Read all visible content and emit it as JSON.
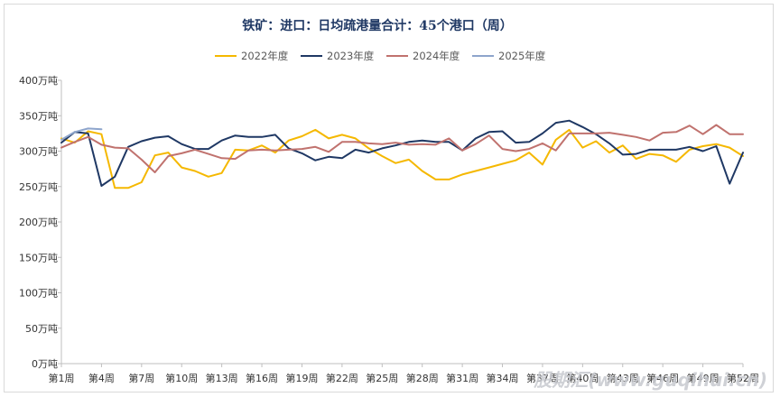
{
  "chart_data": {
    "type": "line",
    "title": "铁矿：进口：日均疏港量合计：45个港口（周）",
    "xlabel": "",
    "ylabel": "",
    "ylim": [
      0,
      400
    ],
    "yticks": [
      0,
      50,
      100,
      150,
      200,
      250,
      300,
      350,
      400
    ],
    "ytick_labels": [
      "0万吨",
      "50万吨",
      "100万吨",
      "150万吨",
      "200万吨",
      "250万吨",
      "300万吨",
      "350万吨",
      "400万吨"
    ],
    "x_range": [
      1,
      52
    ],
    "xtick_weeks": [
      1,
      4,
      7,
      10,
      13,
      16,
      19,
      22,
      25,
      28,
      31,
      34,
      37,
      40,
      43,
      46,
      49,
      52
    ],
    "xtick_labels": [
      "第1周",
      "第4周",
      "第7周",
      "第10周",
      "第13周",
      "第16周",
      "第19周",
      "第22周",
      "第25周",
      "第28周",
      "第31周",
      "第34周",
      "第37周",
      "第40周",
      "第43周",
      "第46周",
      "第49周",
      "第52周"
    ],
    "grid": false,
    "legend_position": "top",
    "series": [
      {
        "name": "2022年度",
        "color": "#f5b800",
        "x": [
          1,
          2,
          3,
          4,
          5,
          6,
          7,
          8,
          9,
          10,
          11,
          12,
          13,
          14,
          15,
          16,
          17,
          18,
          19,
          20,
          21,
          22,
          23,
          24,
          25,
          26,
          27,
          28,
          29,
          30,
          31,
          32,
          33,
          34,
          35,
          36,
          37,
          38,
          39,
          40,
          41,
          42,
          43,
          44,
          45,
          46,
          47,
          48,
          49,
          50,
          51,
          52
        ],
        "values": [
          318,
          312,
          328,
          324,
          248,
          248,
          256,
          294,
          298,
          277,
          272,
          264,
          269,
          302,
          301,
          308,
          298,
          315,
          321,
          330,
          318,
          323,
          318,
          304,
          293,
          283,
          288,
          272,
          260,
          260,
          267,
          272,
          277,
          282,
          287,
          298,
          281,
          316,
          330,
          305,
          314,
          298,
          308,
          289,
          296,
          294,
          285,
          302,
          307,
          310,
          305,
          293
        ]
      },
      {
        "name": "2023年度",
        "color": "#1f3864",
        "x": [
          1,
          2,
          3,
          4,
          5,
          6,
          7,
          8,
          9,
          10,
          11,
          12,
          13,
          14,
          15,
          16,
          17,
          18,
          19,
          20,
          21,
          22,
          23,
          24,
          25,
          26,
          27,
          28,
          29,
          30,
          31,
          32,
          33,
          34,
          35,
          36,
          37,
          38,
          39,
          40,
          41,
          42,
          43,
          44,
          45,
          46,
          47,
          48,
          49,
          50,
          51,
          52
        ],
        "values": [
          312,
          327,
          325,
          251,
          264,
          306,
          314,
          319,
          321,
          310,
          303,
          303,
          315,
          322,
          320,
          320,
          323,
          304,
          297,
          287,
          292,
          290,
          302,
          298,
          304,
          308,
          313,
          315,
          313,
          313,
          301,
          318,
          327,
          328,
          312,
          313,
          325,
          340,
          343,
          334,
          324,
          311,
          295,
          296,
          302,
          302,
          302,
          306,
          300,
          307,
          254,
          298
        ]
      },
      {
        "name": "2024年度",
        "color": "#c0726e",
        "x": [
          1,
          2,
          3,
          4,
          5,
          6,
          7,
          8,
          9,
          10,
          11,
          12,
          13,
          14,
          15,
          16,
          17,
          18,
          19,
          20,
          21,
          22,
          23,
          24,
          25,
          26,
          27,
          28,
          29,
          30,
          31,
          32,
          33,
          34,
          35,
          36,
          37,
          38,
          39,
          40,
          41,
          42,
          43,
          44,
          45,
          46,
          47,
          48,
          49,
          50,
          51,
          52
        ],
        "values": [
          305,
          313,
          320,
          309,
          305,
          304,
          288,
          270,
          293,
          297,
          302,
          296,
          290,
          289,
          301,
          302,
          301,
          302,
          303,
          306,
          299,
          313,
          313,
          311,
          310,
          312,
          309,
          310,
          309,
          318,
          301,
          310,
          322,
          303,
          300,
          303,
          311,
          301,
          325,
          325,
          325,
          326,
          323,
          320,
          315,
          326,
          327,
          336,
          324,
          337,
          324,
          324
        ]
      },
      {
        "name": "2025年度",
        "color": "#8ea5cc",
        "x": [
          1,
          2,
          3,
          4
        ],
        "values": [
          316,
          327,
          332,
          331
        ]
      }
    ]
  },
  "watermark": "股期汇(www.guqihui.cn)"
}
